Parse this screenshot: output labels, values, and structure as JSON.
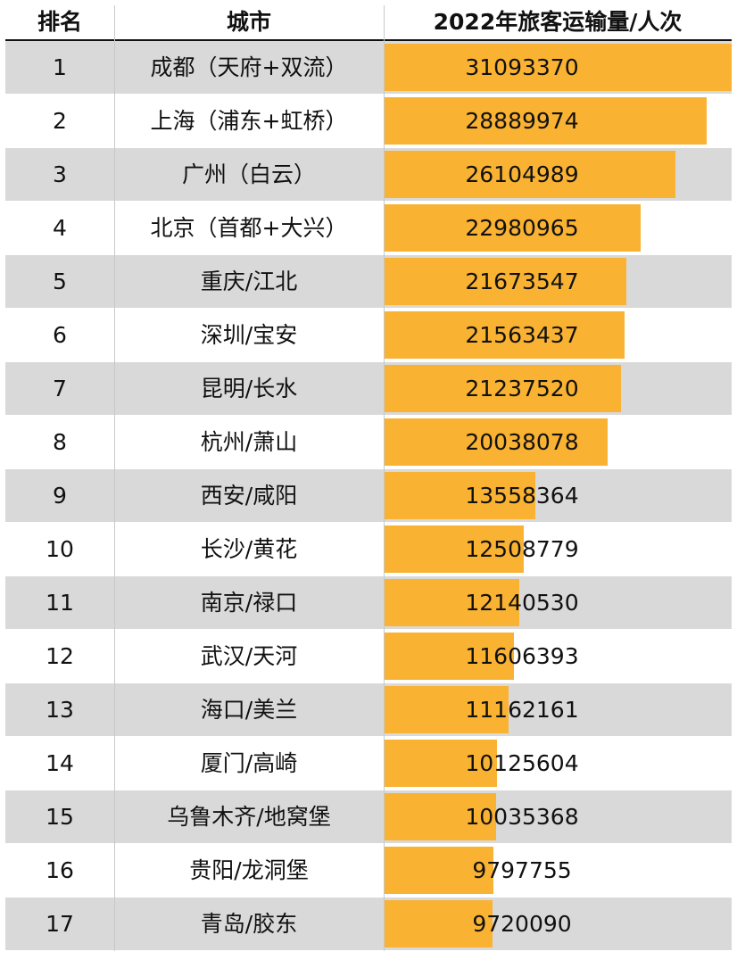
{
  "header": {
    "rank": "排名",
    "city": "城市",
    "value": "2022年旅客运输量/人次"
  },
  "chart_data": {
    "type": "bar",
    "title": "",
    "ylabel": "2022年旅客运输量/人次",
    "categories": [
      "成都（天府+双流）",
      "上海（浦东+虹桥）",
      "广州（白云）",
      "北京（首都+大兴）",
      "重庆/江北",
      "深圳/宝安",
      "昆明/长水",
      "杭州/萧山",
      "西安/咸阳",
      "长沙/黄花",
      "南京/禄口",
      "武汉/天河",
      "海口/美兰",
      "厦门/高崎",
      "乌鲁木齐/地窝堡",
      "贵阳/龙洞堡",
      "青岛/胶东"
    ],
    "ranks": [
      "1",
      "2",
      "3",
      "4",
      "5",
      "6",
      "7",
      "8",
      "9",
      "10",
      "11",
      "12",
      "13",
      "14",
      "15",
      "16",
      "17"
    ],
    "values": [
      31093370,
      28889974,
      26104989,
      22980965,
      21673547,
      21563437,
      21237520,
      20038078,
      13558364,
      12508779,
      12140530,
      11606393,
      11162161,
      10125604,
      10035368,
      9797755,
      9720090
    ],
    "value_labels": [
      "31093370",
      "28889974",
      "26104989",
      "22980965",
      "21673547",
      "21563437",
      "21237520",
      "20038078",
      "13558364",
      "12508779",
      "12140530",
      "11606393",
      "11162161",
      "10125604",
      "10035368",
      "9797755",
      "9720090"
    ],
    "bar_color": "#f9b232",
    "row_alt_color": "#d9d9d9"
  }
}
